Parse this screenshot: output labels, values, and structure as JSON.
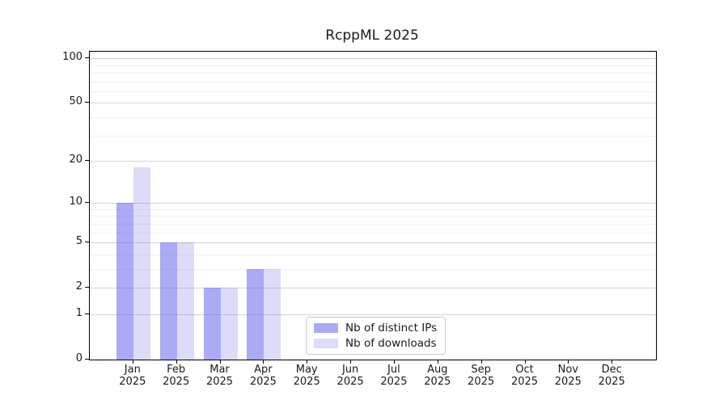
{
  "chart_data": {
    "type": "bar",
    "title": "RcppML 2025",
    "year": "2025",
    "categories": [
      "Jan",
      "Feb",
      "Mar",
      "Apr",
      "May",
      "Jun",
      "Jul",
      "Aug",
      "Sep",
      "Oct",
      "Nov",
      "Dec"
    ],
    "series": [
      {
        "name": "Nb of distinct IPs",
        "color": "#aaaaf5",
        "color_rgba": "rgba(85,85,235,0.5)",
        "values": [
          10,
          5,
          2,
          3,
          0,
          0,
          0,
          0,
          0,
          0,
          0,
          0
        ]
      },
      {
        "name": "Nb of downloads",
        "color": "#dcdcf8",
        "color_rgba": "rgba(80,80,220,0.2)",
        "values": [
          18,
          5,
          2,
          3,
          0,
          0,
          0,
          0,
          0,
          0,
          0,
          0
        ]
      }
    ],
    "yscale": "log1p",
    "ylim": [
      0,
      110.6
    ],
    "y_major_ticks": [
      0,
      1,
      2,
      5,
      10,
      20,
      50,
      100
    ],
    "y_minor_ticks": [
      3,
      4,
      6,
      7,
      8,
      9,
      30,
      40,
      60,
      70,
      80,
      90
    ],
    "grid": "horizontal",
    "legend_position": "inside-lower-center"
  },
  "colors": {
    "grid_major": "#d4d4d4",
    "grid_minor": "#f0f0f0",
    "spine": "#000000",
    "background": "#ffffff",
    "text": "#1a1a1a",
    "legend_border": "#cccccc"
  }
}
